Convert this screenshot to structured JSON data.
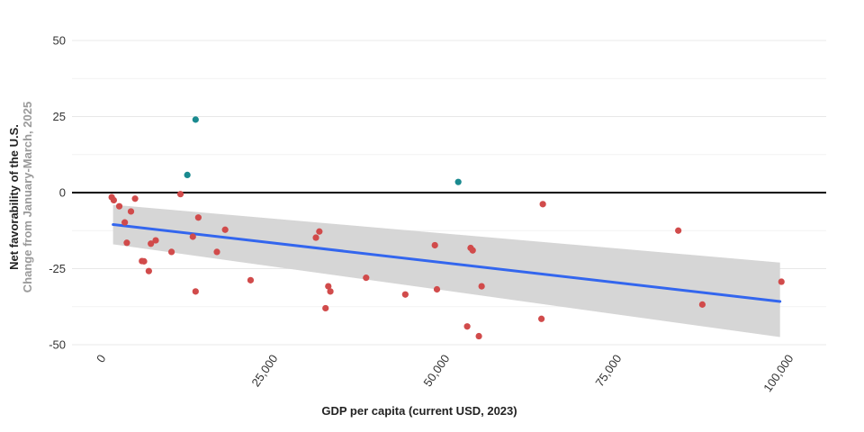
{
  "chart_data": {
    "type": "scatter",
    "title": "",
    "xlabel": "GDP per capita (current USD, 2023)",
    "ylabel": "Net favorability of the U.S.",
    "ylabel_sub": "Change from January-March, 2025",
    "xlim": [
      0,
      100000
    ],
    "ylim": [
      -50,
      50
    ],
    "x_ticks": [
      0,
      25000,
      50000,
      75000,
      100000
    ],
    "x_tick_labels": [
      "0",
      "25,000",
      "50,000",
      "75,000",
      "100,000"
    ],
    "y_ticks": [
      -50,
      -25,
      0,
      25,
      50
    ],
    "y_tick_labels": [
      "-50",
      "-25",
      "0",
      "25",
      "50"
    ],
    "grid": "horizontal",
    "reference_line_y": 0,
    "colors": {
      "negative": "#d14b4b",
      "positive": "#1a8a8f",
      "trend": "#3366ee",
      "band": "#d6d6d6",
      "zero_line": "#000000",
      "grid": "#e8e8e8"
    },
    "trend": {
      "x": [
        1000,
        98000
      ],
      "y": [
        -10.5,
        -35.8
      ]
    },
    "confidence_band": {
      "x": [
        1000,
        98000
      ],
      "upper": [
        -4,
        -23
      ],
      "lower": [
        -17,
        -47.5
      ]
    },
    "points_positive": [
      {
        "x": 13000,
        "y": 24
      },
      {
        "x": 11800,
        "y": 5.8
      },
      {
        "x": 51200,
        "y": 3.5
      }
    ],
    "points_negative": [
      {
        "x": 800,
        "y": -1.5
      },
      {
        "x": 1100,
        "y": -2.5
      },
      {
        "x": 1900,
        "y": -4.5
      },
      {
        "x": 2700,
        "y": -9.8
      },
      {
        "x": 3000,
        "y": -16.5
      },
      {
        "x": 3600,
        "y": -6.2
      },
      {
        "x": 4200,
        "y": -2
      },
      {
        "x": 5200,
        "y": -22.5
      },
      {
        "x": 5500,
        "y": -22.6
      },
      {
        "x": 6200,
        "y": -25.8
      },
      {
        "x": 6500,
        "y": -16.8
      },
      {
        "x": 7200,
        "y": -15.7
      },
      {
        "x": 9500,
        "y": -19.5
      },
      {
        "x": 10800,
        "y": -0.5
      },
      {
        "x": 12600,
        "y": -14.5
      },
      {
        "x": 13000,
        "y": -32.5
      },
      {
        "x": 13400,
        "y": -8.2
      },
      {
        "x": 16100,
        "y": -19.5
      },
      {
        "x": 17300,
        "y": -12.2
      },
      {
        "x": 21000,
        "y": -28.8
      },
      {
        "x": 30500,
        "y": -14.8
      },
      {
        "x": 31000,
        "y": -12.8
      },
      {
        "x": 31900,
        "y": -38
      },
      {
        "x": 32300,
        "y": -30.8
      },
      {
        "x": 32600,
        "y": -32.5
      },
      {
        "x": 37800,
        "y": -28
      },
      {
        "x": 43500,
        "y": -33.5
      },
      {
        "x": 47800,
        "y": -17.3
      },
      {
        "x": 48100,
        "y": -31.8
      },
      {
        "x": 52500,
        "y": -44
      },
      {
        "x": 53000,
        "y": -18.2
      },
      {
        "x": 53300,
        "y": -19
      },
      {
        "x": 54200,
        "y": -47.2
      },
      {
        "x": 54600,
        "y": -30.8
      },
      {
        "x": 63300,
        "y": -41.5
      },
      {
        "x": 63500,
        "y": -3.8
      },
      {
        "x": 83200,
        "y": -12.5
      },
      {
        "x": 86700,
        "y": -36.8
      },
      {
        "x": 98200,
        "y": -29.3
      }
    ]
  }
}
